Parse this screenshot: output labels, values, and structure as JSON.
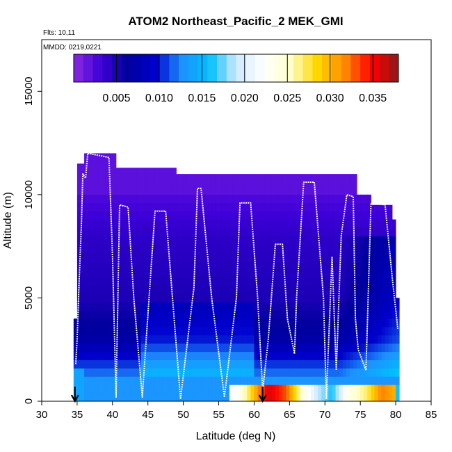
{
  "chart_data": {
    "type": "heatmap",
    "title": "ATOM2 Northeast_Pacific_2 MEK_GMI",
    "annotations": [
      "Flts: 10,11",
      "MMDD: 0219,0221"
    ],
    "xlabel": "Latitude (deg N)",
    "ylabel": "Altitude (m)",
    "xlim": [
      30,
      85
    ],
    "ylim": [
      0,
      17500
    ],
    "x_ticks": [
      "30",
      "35",
      "40",
      "45",
      "50",
      "55",
      "60",
      "65",
      "70",
      "75",
      "80",
      "85"
    ],
    "y_ticks": [
      "0",
      "5000",
      "10000",
      "15000"
    ],
    "colorbar": {
      "range": [
        0,
        0.038
      ],
      "ticks": [
        "0.005",
        "0.010",
        "0.015",
        "0.020",
        "0.025",
        "0.030",
        "0.035"
      ],
      "colors": [
        "#8a2be2",
        "#3f00d8",
        "#00009c",
        "#0000cd",
        "#1e90ff",
        "#00bfff",
        "#cfe8ff",
        "#ffffff",
        "#ffffcc",
        "#ffd700",
        "#ff8c00",
        "#ff0000",
        "#8b1a1a"
      ]
    },
    "arrows_at_latitude": [
      34.7,
      61.2
    ],
    "columns": [
      {
        "lat": [
          34.5,
          35.0
        ],
        "top": 4000
      },
      {
        "lat": [
          35.0,
          36.0
        ],
        "top": 11500
      },
      {
        "lat": [
          36.0,
          40.5
        ],
        "top": 12000
      },
      {
        "lat": [
          40.5,
          49.0
        ],
        "top": 11300
      },
      {
        "lat": [
          49.0,
          59.0
        ],
        "top": 11000
      },
      {
        "lat": [
          59.0,
          74.5
        ],
        "top": 11000
      },
      {
        "lat": [
          74.5,
          76.5
        ],
        "top": 10000
      },
      {
        "lat": [
          76.5,
          79.5
        ],
        "top": 9500
      },
      {
        "lat": [
          79.5,
          80.0
        ],
        "top": 8800
      },
      {
        "lat": [
          80.0,
          80.5
        ],
        "top": 5000
      }
    ],
    "flight_path": [
      [
        34.8,
        1800
      ],
      [
        35.0,
        3000
      ],
      [
        35.3,
        6000
      ],
      [
        35.6,
        8500
      ],
      [
        35.8,
        11000
      ],
      [
        36.2,
        10800
      ],
      [
        36.5,
        12000
      ],
      [
        39.5,
        11800
      ],
      [
        40.0,
        7000
      ],
      [
        40.5,
        200
      ],
      [
        41.0,
        9500
      ],
      [
        42.2,
        9400
      ],
      [
        43.0,
        5000
      ],
      [
        44.2,
        200
      ],
      [
        46.0,
        9200
      ],
      [
        47.5,
        9200
      ],
      [
        48.7,
        4000
      ],
      [
        49.6,
        100
      ],
      [
        51.5,
        5500
      ],
      [
        52.0,
        10300
      ],
      [
        52.5,
        10300
      ],
      [
        54.0,
        5000
      ],
      [
        55.8,
        200
      ],
      [
        57.5,
        5000
      ],
      [
        58.0,
        9600
      ],
      [
        59.5,
        9600
      ],
      [
        60.5,
        5000
      ],
      [
        61.2,
        500
      ],
      [
        62.0,
        3000
      ],
      [
        63.0,
        7600
      ],
      [
        64.0,
        7600
      ],
      [
        64.7,
        4000
      ],
      [
        65.7,
        2300
      ],
      [
        66.0,
        5000
      ],
      [
        67.0,
        10600
      ],
      [
        68.5,
        10600
      ],
      [
        69.8,
        5000
      ],
      [
        70.2,
        100
      ],
      [
        71.0,
        7000
      ],
      [
        71.6,
        1500
      ],
      [
        72.3,
        8000
      ],
      [
        73.1,
        10000
      ],
      [
        74.0,
        9900
      ],
      [
        74.3,
        4000
      ],
      [
        74.7,
        2500
      ],
      [
        75.8,
        1500
      ],
      [
        76.5,
        9600
      ],
      [
        78.5,
        9500
      ],
      [
        79.5,
        6000
      ],
      [
        80.3,
        3500
      ]
    ]
  }
}
